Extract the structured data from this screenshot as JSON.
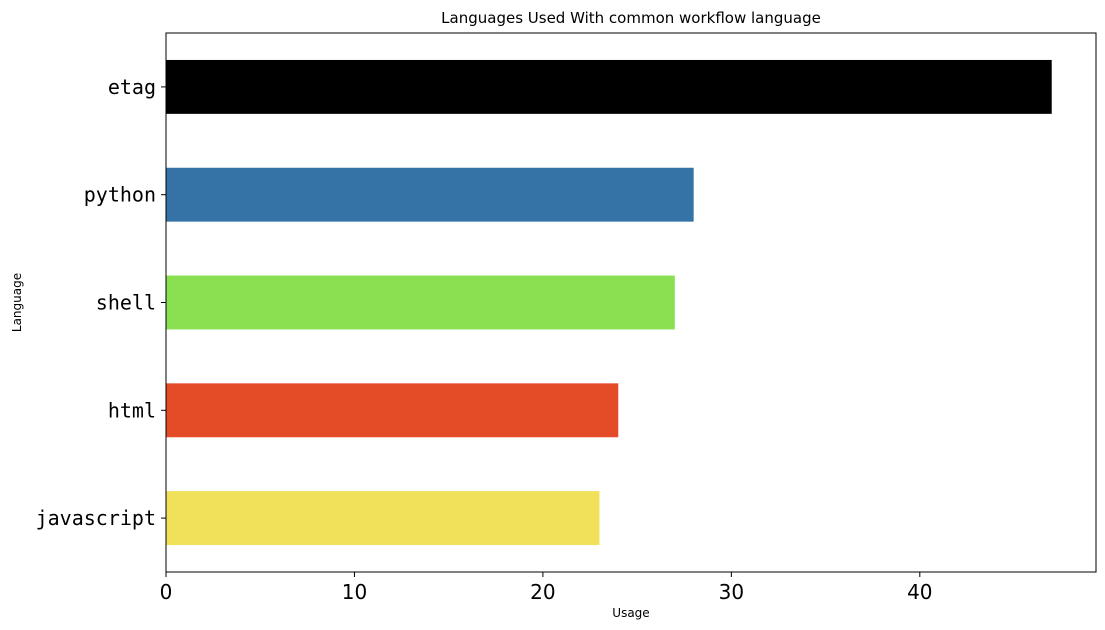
{
  "chart_data": {
    "type": "bar",
    "orientation": "horizontal",
    "title": "Languages Used With common workflow language",
    "xlabel": "Usage",
    "ylabel": "Language",
    "categories": [
      "etag",
      "python",
      "shell",
      "html",
      "javascript"
    ],
    "values": [
      47,
      28,
      27,
      24,
      23
    ],
    "colors": [
      "#000000",
      "#3572A5",
      "#89E051",
      "#E34C26",
      "#F1E05A"
    ],
    "xlim": [
      0,
      49.35
    ],
    "xticks": [
      0,
      10,
      20,
      30,
      40
    ],
    "grid": false,
    "legend": "none"
  }
}
